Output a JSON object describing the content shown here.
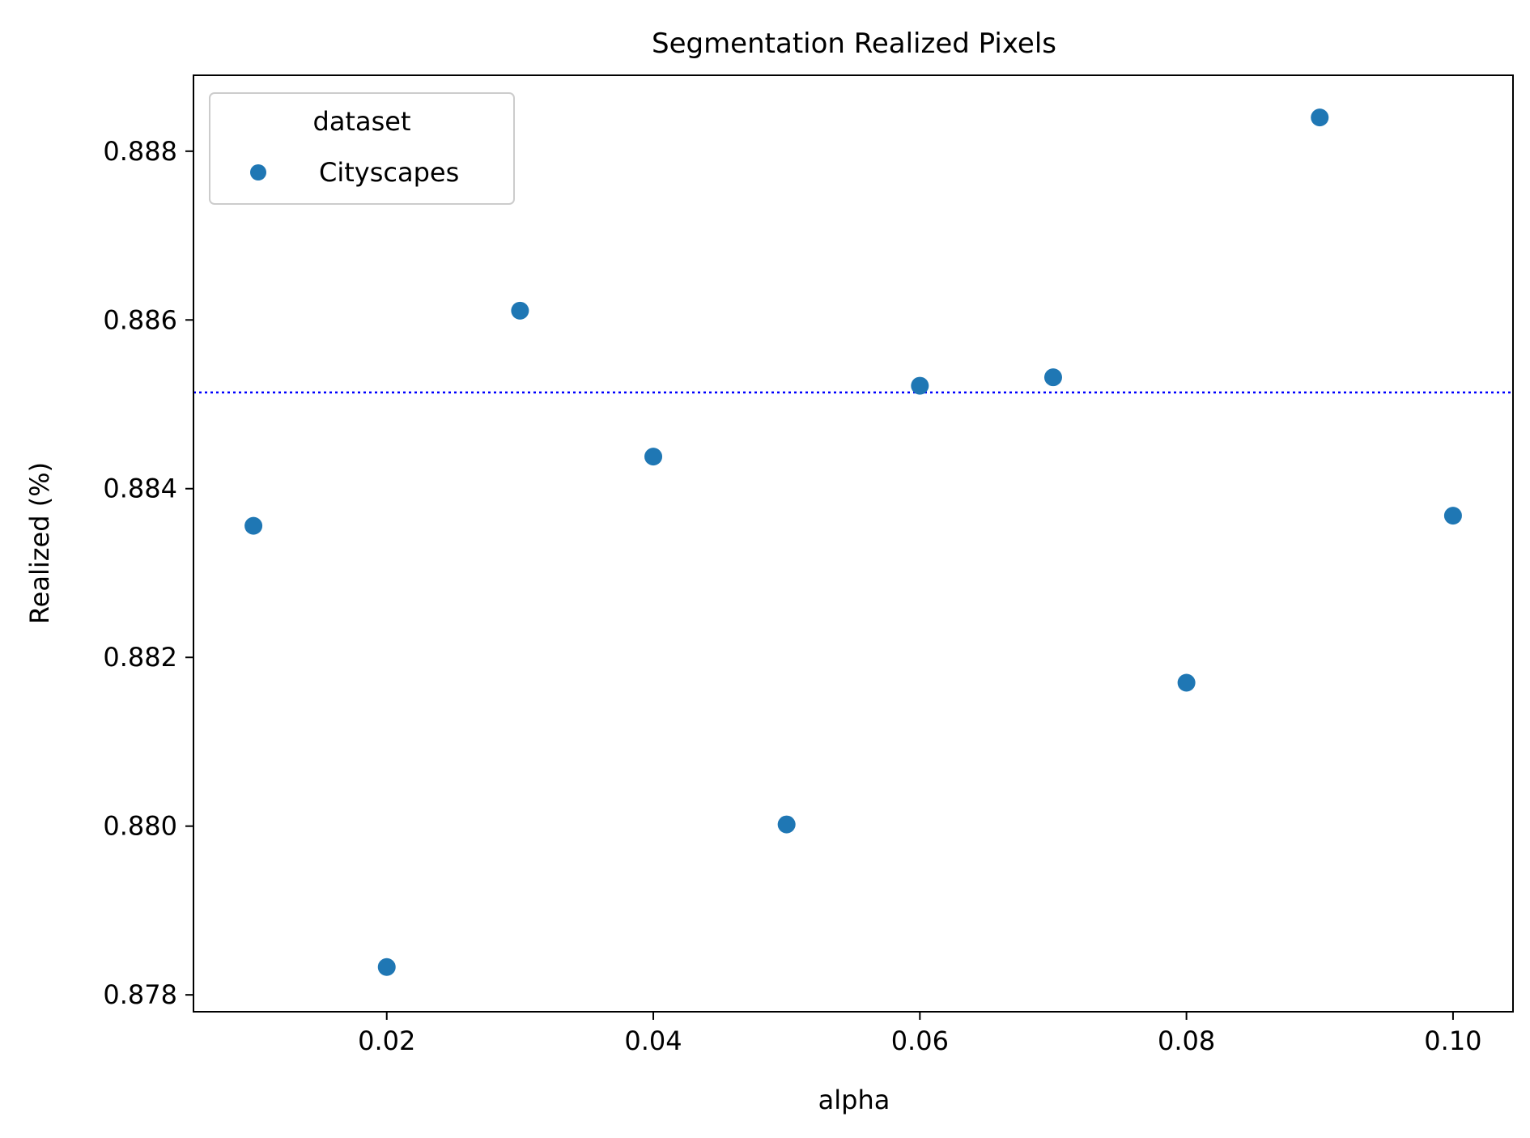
{
  "chart_data": {
    "type": "scatter",
    "title": "Segmentation Realized Pixels",
    "xlabel": "alpha",
    "ylabel": "Realized (%)",
    "xlim": [
      0.0055,
      0.1045
    ],
    "ylim": [
      0.8778,
      0.8889
    ],
    "xticks": [
      0.02,
      0.04,
      0.06,
      0.08,
      0.1
    ],
    "xtick_labels": [
      "0.02",
      "0.04",
      "0.06",
      "0.08",
      "0.10"
    ],
    "yticks": [
      0.878,
      0.88,
      0.882,
      0.884,
      0.886,
      0.888
    ],
    "ytick_labels": [
      "0.878",
      "0.880",
      "0.882",
      "0.884",
      "0.886",
      "0.888"
    ],
    "grid": false,
    "legend": {
      "title": "dataset",
      "position": "top-left"
    },
    "series": [
      {
        "name": "Cityscapes",
        "color": "#1f77b4",
        "x": [
          0.01,
          0.02,
          0.03,
          0.04,
          0.05,
          0.06,
          0.07,
          0.08,
          0.09,
          0.1
        ],
        "y": [
          0.88356,
          0.87833,
          0.88611,
          0.88438,
          0.88002,
          0.88522,
          0.88532,
          0.8817,
          0.8884,
          0.88368
        ]
      }
    ],
    "reference_line": {
      "orientation": "horizontal",
      "y": 0.88514,
      "color": "#0000ff",
      "style": "dotted"
    }
  }
}
